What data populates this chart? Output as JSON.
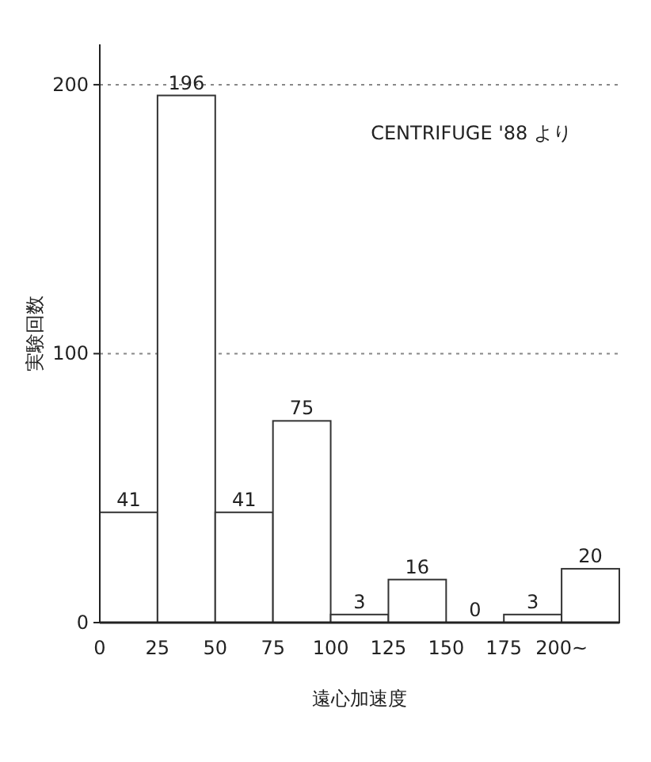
{
  "chart_data": {
    "type": "histogram",
    "xlabel": "遠心加速度",
    "ylabel": "実験回数",
    "bins": [
      0,
      25,
      50,
      75,
      100,
      125,
      150,
      175,
      200,
      225
    ],
    "values": [
      41,
      196,
      41,
      75,
      3,
      16,
      0,
      3,
      20
    ],
    "color": "#ffffff",
    "xlim": [
      0,
      225
    ],
    "xticks": [
      0,
      25,
      50,
      75,
      100,
      125,
      150,
      175,
      {
        "value": 200,
        "label": "200~"
      }
    ],
    "ylim": [
      0,
      215
    ],
    "yticks": [
      0,
      100,
      200
    ],
    "grid": "y",
    "data_labels": true,
    "annotations": [
      "CENTRIFUGE '88 より"
    ]
  }
}
